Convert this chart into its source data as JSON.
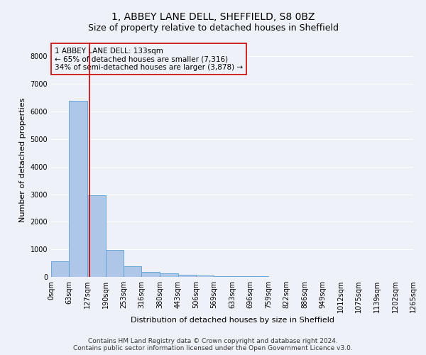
{
  "title": "1, ABBEY LANE DELL, SHEFFIELD, S8 0BZ",
  "subtitle": "Size of property relative to detached houses in Sheffield",
  "xlabel": "Distribution of detached houses by size in Sheffield",
  "ylabel": "Number of detached properties",
  "footer_line1": "Contains HM Land Registry data © Crown copyright and database right 2024.",
  "footer_line2": "Contains public sector information licensed under the Open Government Licence v3.0.",
  "annotation_line1": "1 ABBEY LANE DELL: 133sqm",
  "annotation_line2": "← 65% of detached houses are smaller (7,316)",
  "annotation_line3": "34% of semi-detached houses are larger (3,878) →",
  "bin_edges": [
    0,
    63,
    127,
    190,
    253,
    316,
    380,
    443,
    506,
    569,
    633,
    696,
    759,
    822,
    886,
    949,
    1012,
    1075,
    1139,
    1202,
    1265
  ],
  "bin_labels": [
    "0sqm",
    "63sqm",
    "127sqm",
    "190sqm",
    "253sqm",
    "316sqm",
    "380sqm",
    "443sqm",
    "506sqm",
    "569sqm",
    "633sqm",
    "696sqm",
    "759sqm",
    "822sqm",
    "886sqm",
    "949sqm",
    "1012sqm",
    "1075sqm",
    "1139sqm",
    "1202sqm",
    "1265sqm"
  ],
  "counts": [
    570,
    6400,
    2950,
    980,
    380,
    180,
    120,
    80,
    60,
    30,
    20,
    15,
    10,
    8,
    6,
    5,
    4,
    3,
    2,
    2
  ],
  "bar_color": "#aec6e8",
  "bar_edge_color": "#5a9fd4",
  "vline_color": "#cc0000",
  "vline_x": 133,
  "annotation_box_color": "#cc0000",
  "ylim": [
    0,
    8500
  ],
  "xlim": [
    0,
    1265
  ],
  "background_color": "#eef2f8",
  "grid_color": "#ffffff",
  "title_fontsize": 10,
  "subtitle_fontsize": 9,
  "axis_label_fontsize": 8,
  "tick_fontsize": 7,
  "annotation_fontsize": 7.5,
  "footer_fontsize": 6.5
}
